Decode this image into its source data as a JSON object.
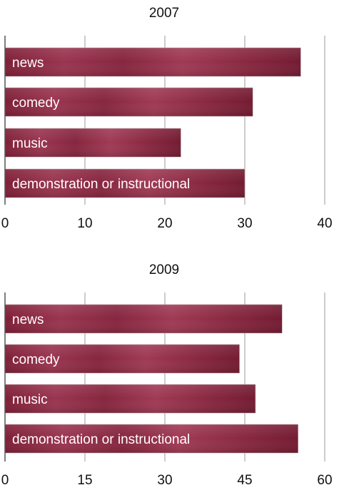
{
  "chart_data": [
    {
      "type": "bar",
      "orientation": "horizontal",
      "title": "2007",
      "categories": [
        "news",
        "comedy",
        "music",
        "demonstration or instructional"
      ],
      "values": [
        37,
        31,
        22,
        30
      ],
      "xlim": [
        0,
        40
      ],
      "xticks": [
        0,
        10,
        20,
        30,
        40
      ],
      "grid": true,
      "bar_color": "#8e2a43"
    },
    {
      "type": "bar",
      "orientation": "horizontal",
      "title": "2009",
      "categories": [
        "news",
        "comedy",
        "music",
        "demonstration or instructional"
      ],
      "values": [
        52,
        44,
        47,
        55
      ],
      "xlim": [
        0,
        60
      ],
      "xticks": [
        0,
        15,
        30,
        45,
        60
      ],
      "grid": true,
      "bar_color": "#8e2a43"
    }
  ]
}
